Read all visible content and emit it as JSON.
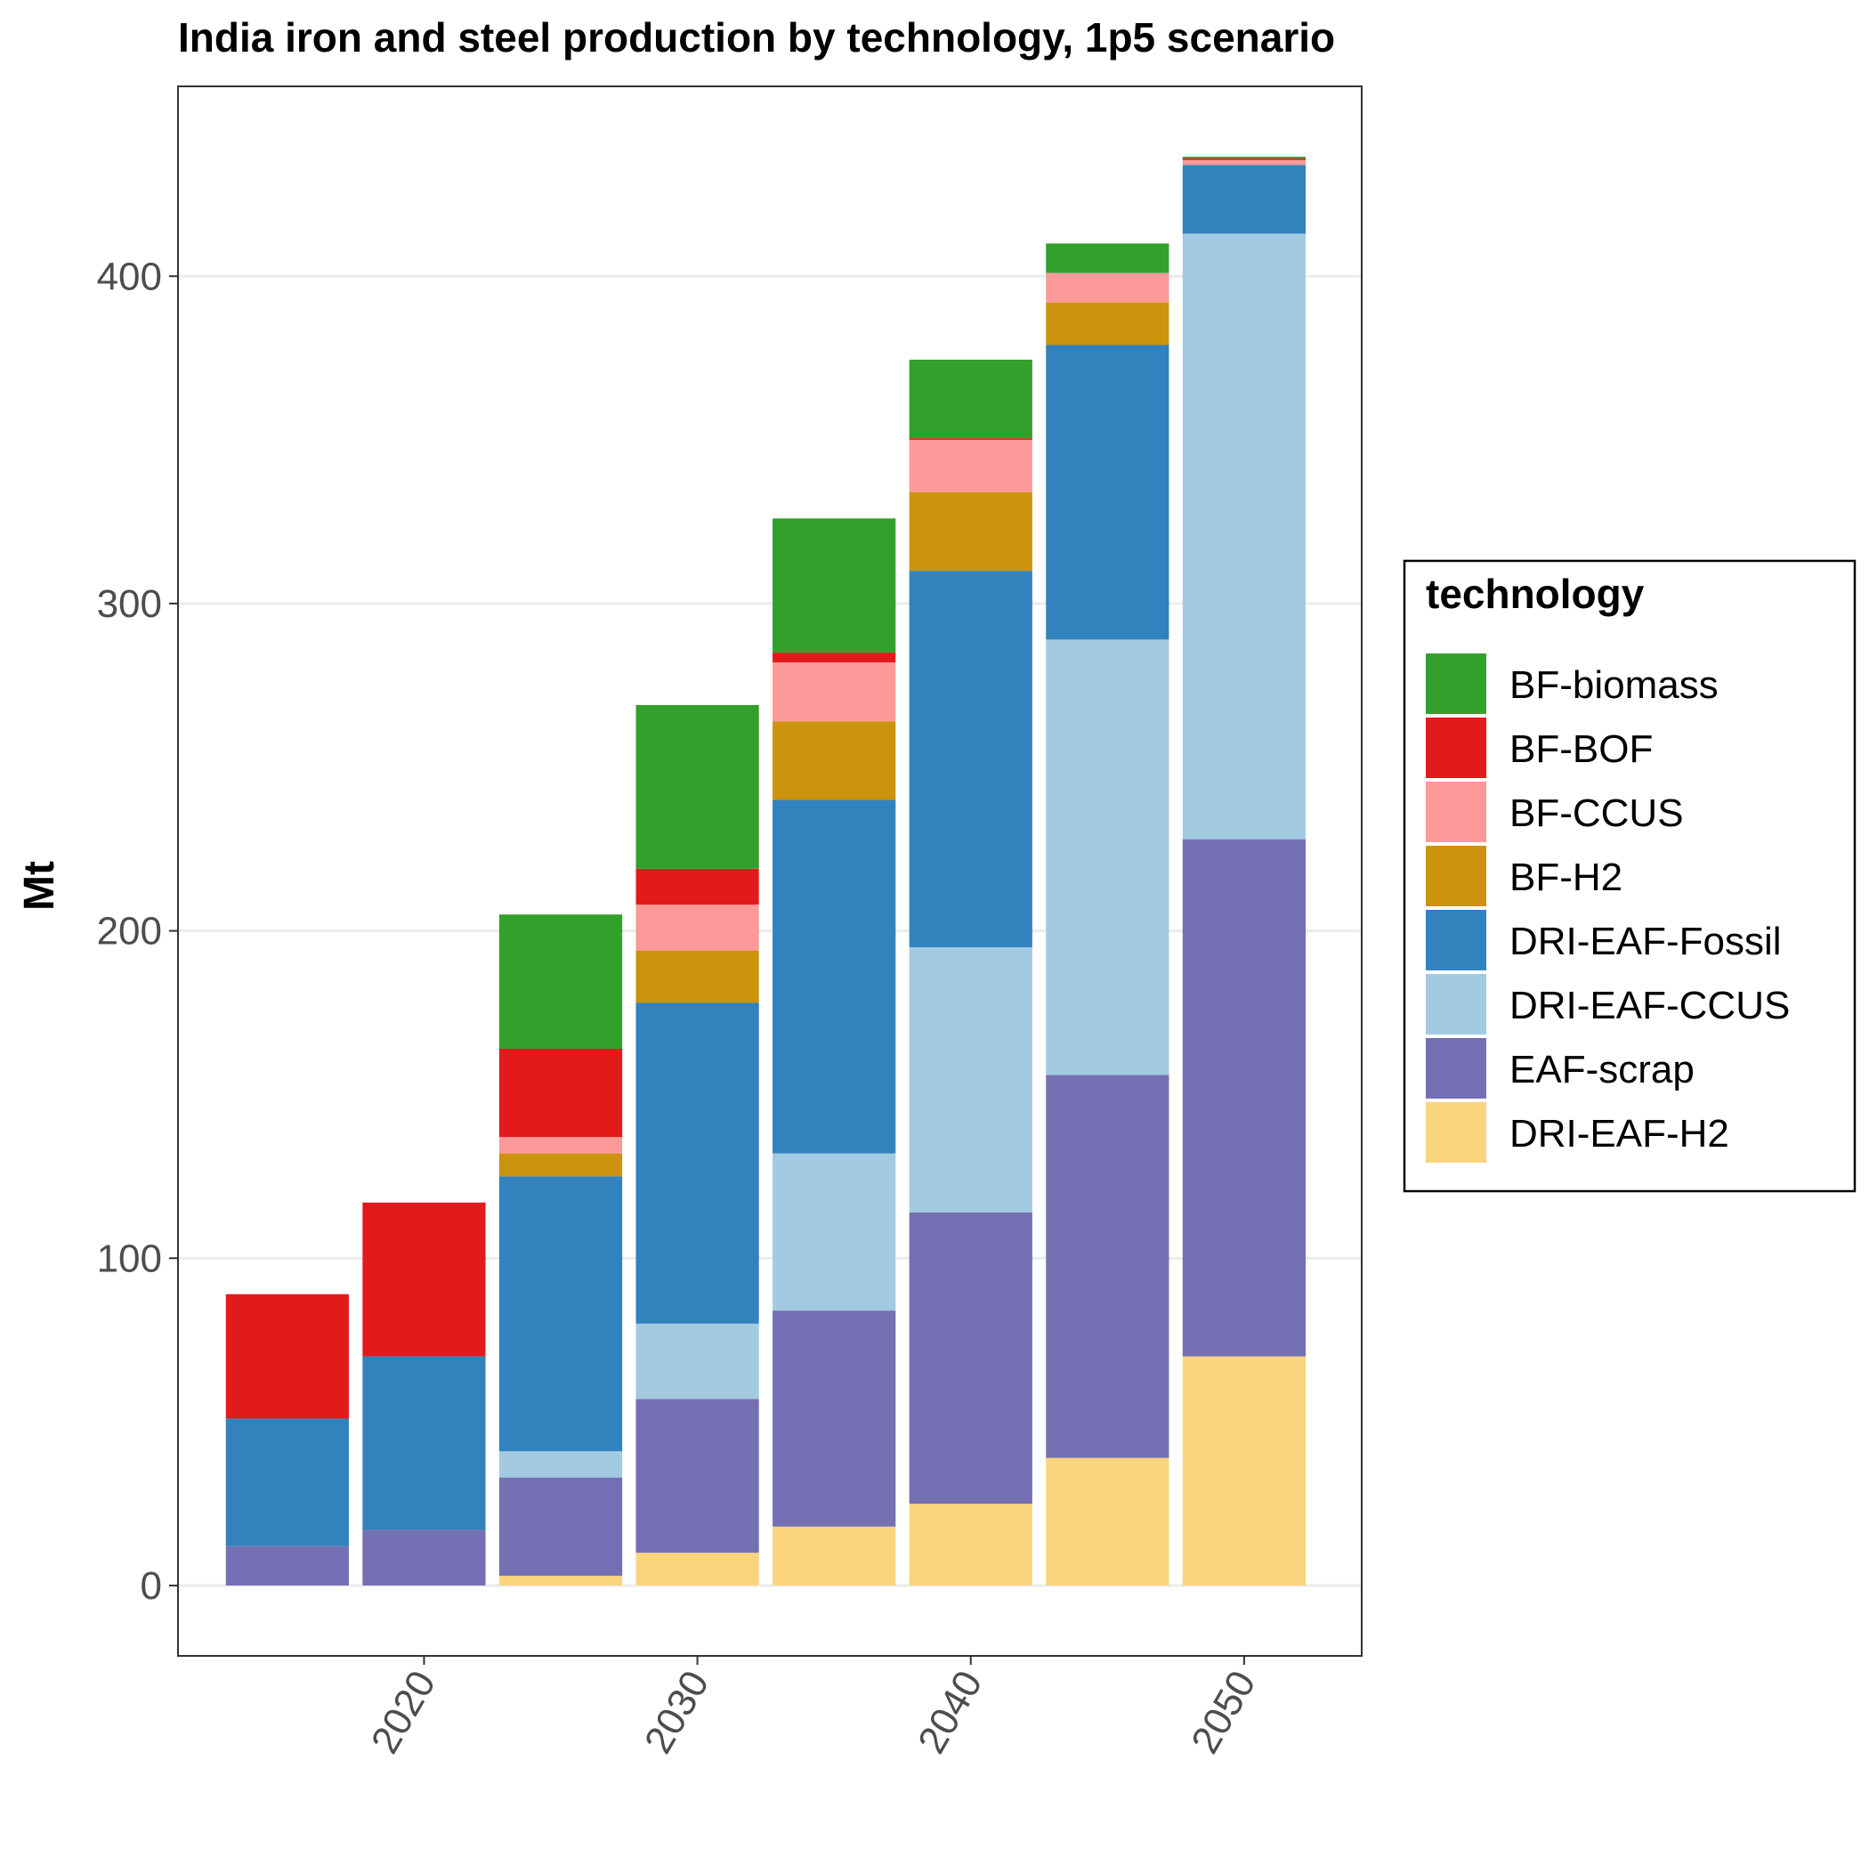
{
  "chart_data": {
    "type": "bar",
    "stacked": true,
    "title": "India iron and steel production by technology, 1p5 scenario",
    "xlabel": "",
    "ylabel": "Mt",
    "x": [
      2015,
      2020,
      2025,
      2030,
      2035,
      2040,
      2045,
      2050
    ],
    "x_ticks": [
      2020,
      2030,
      2040,
      2050
    ],
    "x_tick_labels": [
      "2020",
      "2030",
      "2040",
      "2050"
    ],
    "xlim": [
      2011,
      2054.3
    ],
    "y_ticks": [
      0,
      100,
      200,
      300,
      400
    ],
    "y_tick_labels": [
      "0",
      "100",
      "200",
      "300",
      "400"
    ],
    "ylim": [
      -21.5,
      458
    ],
    "grid": true,
    "legend": {
      "title": "technology",
      "placement": "right"
    },
    "series": [
      {
        "name": "DRI-EAF-H2",
        "color": "#fad47f",
        "values": [
          0,
          0,
          3,
          10,
          18,
          25,
          39,
          70
        ]
      },
      {
        "name": "EAF-scrap",
        "color": "#7570b3",
        "values": [
          12,
          17,
          30,
          47,
          66,
          89,
          117,
          158
        ]
      },
      {
        "name": "DRI-EAF-CCUS",
        "color": "#a2cbe2",
        "values": [
          0,
          0,
          8,
          23,
          48,
          81,
          133,
          185
        ]
      },
      {
        "name": "DRI-EAF-Fossil",
        "color": "#3282bd",
        "values": [
          39,
          53,
          84,
          98,
          108,
          115,
          90,
          21
        ]
      },
      {
        "name": "BF-H2",
        "color": "#cc930c",
        "values": [
          0,
          0,
          7,
          16,
          24,
          24,
          13,
          0
        ]
      },
      {
        "name": "BF-CCUS",
        "color": "#fc9999",
        "values": [
          0,
          0,
          5,
          14,
          18,
          16,
          9,
          1.5
        ]
      },
      {
        "name": "BF-BOF",
        "color": "#e31a1c",
        "values": [
          38,
          47,
          27,
          11,
          3,
          0.5,
          0,
          0.5
        ]
      },
      {
        "name": "BF-biomass",
        "color": "#33a02c",
        "values": [
          0,
          0,
          41,
          50,
          41,
          24,
          9,
          0.5
        ]
      }
    ],
    "legend_order": [
      "BF-biomass",
      "BF-BOF",
      "BF-CCUS",
      "BF-H2",
      "DRI-EAF-Fossil",
      "DRI-EAF-CCUS",
      "EAF-scrap",
      "DRI-EAF-H2"
    ]
  }
}
